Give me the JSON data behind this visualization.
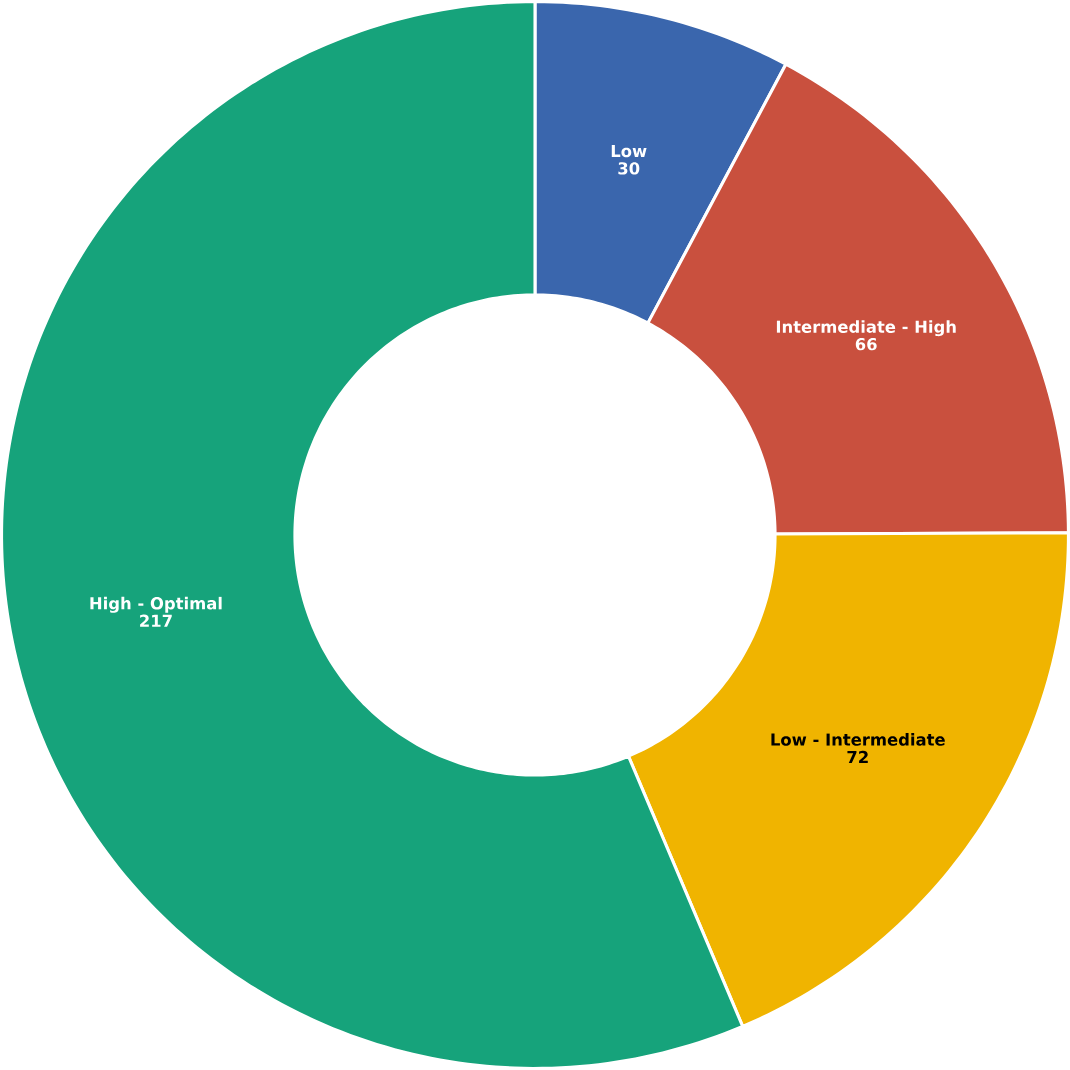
{
  "chart_data": {
    "type": "donut",
    "categories": [
      "Low",
      "Intermediate - High",
      "Low - Intermediate",
      "High - Optimal"
    ],
    "values": [
      30,
      66,
      72,
      217
    ],
    "colors": [
      "#3a66ad",
      "#c9503e",
      "#f0b400",
      "#16a37b"
    ],
    "data_labels": true
  }
}
